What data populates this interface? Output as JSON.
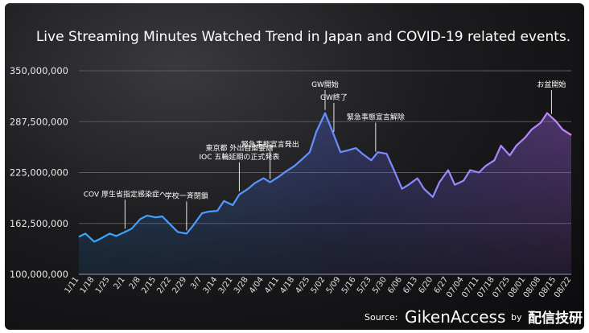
{
  "colors": {
    "line_start": "#2fa8ff",
    "line_end": "#c586ff",
    "background": "#1a1a1d"
  },
  "chart_data": {
    "type": "area",
    "title": "Live Streaming Minutes Watched Trend in Japan and COVID-19 related events.",
    "xlabel": "",
    "ylabel": "",
    "ylim": [
      100000000,
      350000000
    ],
    "y_ticks": [
      100000000,
      162500000,
      225000000,
      287500000,
      350000000
    ],
    "y_tick_labels": [
      "100,000,000",
      "162,500,000",
      "225,000,000",
      "287,500,000",
      "350,000,000"
    ],
    "grid": true,
    "x_tick_labels": [
      "1/11",
      "1/18",
      "1/25",
      "2/1",
      "2/8",
      "2/15",
      "2/22",
      "2/29",
      "3/7",
      "3/14",
      "3/21",
      "3/28",
      "4/04",
      "4/11",
      "4/18",
      "4/25",
      "5/02",
      "5/09",
      "5/16",
      "5/23",
      "5/30",
      "6/06",
      "6/13",
      "6/20",
      "6/27",
      "07/04",
      "07/11",
      "07/18",
      "07/25",
      "08/01",
      "08/08",
      "08/15",
      "08/22"
    ],
    "x": [
      "1/11",
      "1/14",
      "1/18",
      "1/21",
      "1/25",
      "1/28",
      "2/1",
      "2/4",
      "2/8",
      "2/11",
      "2/15",
      "2/18",
      "2/22",
      "2/25",
      "2/29",
      "3/3",
      "3/7",
      "3/10",
      "3/14",
      "3/17",
      "3/21",
      "3/24",
      "3/28",
      "3/31",
      "4/04",
      "4/07",
      "4/11",
      "4/14",
      "4/18",
      "4/21",
      "4/25",
      "4/28",
      "5/02",
      "5/05",
      "5/09",
      "5/12",
      "5/16",
      "5/19",
      "5/23",
      "5/26",
      "5/30",
      "6/02",
      "6/06",
      "6/09",
      "6/13",
      "6/16",
      "6/20",
      "6/23",
      "6/27",
      "6/30",
      "07/04",
      "07/07",
      "07/11",
      "07/14",
      "07/18",
      "07/21",
      "07/25",
      "07/28",
      "08/01",
      "08/04",
      "08/08",
      "08/11",
      "08/15",
      "08/18",
      "08/22"
    ],
    "series": [
      {
        "values": [
          146000000,
          150000000,
          140000000,
          144000000,
          150000000,
          147000000,
          152000000,
          156000000,
          168000000,
          172000000,
          170000000,
          171000000,
          160000000,
          152000000,
          150000000,
          160000000,
          175000000,
          177000000,
          178000000,
          190000000,
          185000000,
          198000000,
          205000000,
          212000000,
          218000000,
          213000000,
          220000000,
          226000000,
          233000000,
          240000000,
          250000000,
          275000000,
          298000000,
          278000000,
          250000000,
          252000000,
          255000000,
          248000000,
          240000000,
          250000000,
          248000000,
          230000000,
          205000000,
          210000000,
          218000000,
          205000000,
          195000000,
          213000000,
          228000000,
          210000000,
          215000000,
          228000000,
          225000000,
          233000000,
          240000000,
          258000000,
          246000000,
          258000000,
          268000000,
          278000000,
          286000000,
          298000000,
          288000000,
          278000000,
          271000000
        ]
      }
    ],
    "annotations": [
      {
        "x": "2/01",
        "lines": [
          "COV 厚生省指定感染症へ"
        ]
      },
      {
        "x": "2/29",
        "lines": [
          "学校一斉閉鎖"
        ]
      },
      {
        "x": "3/24",
        "lines": [
          "東京都 外出自粛要請",
          "IOC 五輪延期の正式発表"
        ]
      },
      {
        "x": "4/07",
        "lines": [
          "緊急事態宣言発出"
        ]
      },
      {
        "x": "5/02",
        "lines": [
          "GW開始"
        ]
      },
      {
        "x": "5/06",
        "lines": [
          "GW終了"
        ]
      },
      {
        "x": "5/25",
        "lines": [
          "緊急事態宣言解除"
        ]
      },
      {
        "x": "08/13",
        "lines": [
          "お盆開始"
        ]
      }
    ]
  },
  "footer": {
    "source_label": "Source:",
    "brand": "GikenAccess",
    "by_label": "by",
    "partner": "配信技研"
  }
}
